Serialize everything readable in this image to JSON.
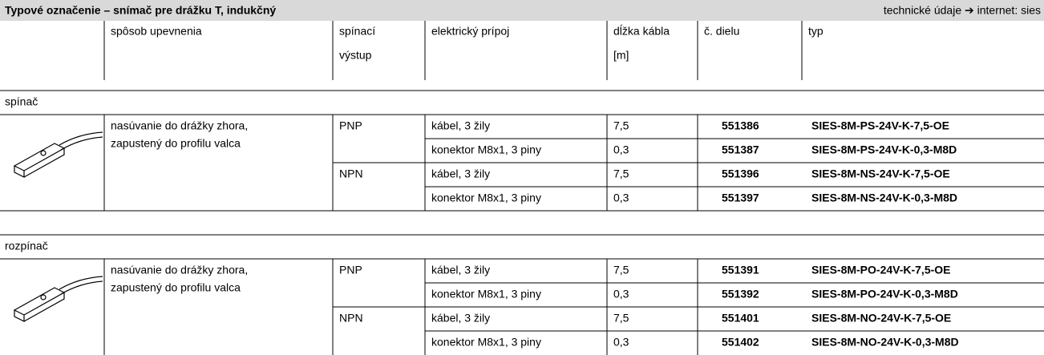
{
  "header": {
    "title": "Typové označenie – snímač pre drážku T, indukčný",
    "link": "technické údaje ➔ internet: sies"
  },
  "table": {
    "columns": [
      [
        "spôsob upevnenia"
      ],
      [
        "spínací",
        "výstup"
      ],
      [
        "elektrický prípoj"
      ],
      [
        "dĺžka kábla",
        "[m]"
      ],
      [
        "č. dielu"
      ],
      [
        "typ"
      ]
    ],
    "groups": [
      {
        "label": "spínač",
        "mounting": [
          "nasúvanie do drážky zhora,",
          "zapustený do profilu valca"
        ],
        "outputs": [
          {
            "output": "PNP",
            "rows": [
              {
                "connection": "kábel, 3 žily",
                "length": "7,5",
                "part": "551386",
                "type": "SIES-8M-PS-24V-K-7,5-OE"
              },
              {
                "connection": "konektor M8x1, 3 piny",
                "length": "0,3",
                "part": "551387",
                "type": "SIES-8M-PS-24V-K-0,3-M8D"
              }
            ]
          },
          {
            "output": "NPN",
            "rows": [
              {
                "connection": "kábel, 3 žily",
                "length": "7,5",
                "part": "551396",
                "type": "SIES-8M-NS-24V-K-7,5-OE"
              },
              {
                "connection": "konektor M8x1, 3 piny",
                "length": "0,3",
                "part": "551397",
                "type": "SIES-8M-NS-24V-K-0,3-M8D"
              }
            ]
          }
        ]
      },
      {
        "label": "rozpínač",
        "mounting": [
          "nasúvanie do drážky zhora,",
          "zapustený do profilu valca"
        ],
        "outputs": [
          {
            "output": "PNP",
            "rows": [
              {
                "connection": "kábel, 3 žily",
                "length": "7,5",
                "part": "551391",
                "type": "SIES-8M-PO-24V-K-7,5-OE"
              },
              {
                "connection": "konektor M8x1, 3 piny",
                "length": "0,3",
                "part": "551392",
                "type": "SIES-8M-PO-24V-K-0,3-M8D"
              }
            ]
          },
          {
            "output": "NPN",
            "rows": [
              {
                "connection": "kábel, 3 žily",
                "length": "7,5",
                "part": "551401",
                "type": "SIES-8M-NO-24V-K-7,5-OE"
              },
              {
                "connection": "konektor M8x1, 3 piny",
                "length": "0,3",
                "part": "551402",
                "type": "SIES-8M-NO-24V-K-0,3-M8D"
              }
            ]
          }
        ]
      }
    ]
  }
}
